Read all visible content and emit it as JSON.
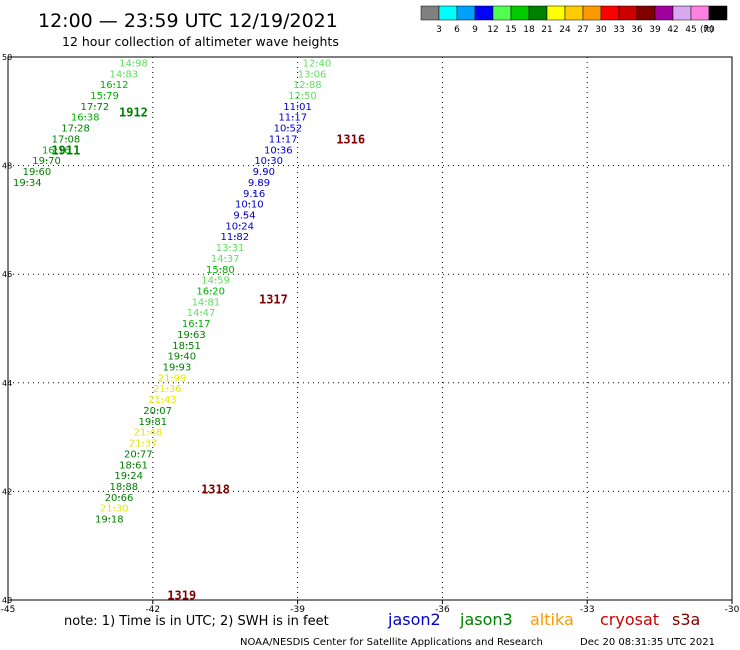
{
  "header": {
    "title": "12:00 — 23:59 UTC 12/19/2021",
    "subtitle": "12 hour collection of altimeter wave heights"
  },
  "colorbar": {
    "labels": [
      "3",
      "6",
      "9",
      "12",
      "15",
      "18",
      "21",
      "24",
      "27",
      "30",
      "33",
      "36",
      "39",
      "42",
      "45",
      "70"
    ],
    "unit": "(ft)",
    "colors": [
      "#808080",
      "#00ffff",
      "#00a0ff",
      "#0000ff",
      "#50ff50",
      "#00cc00",
      "#008000",
      "#ffff00",
      "#ffcc00",
      "#ff9900",
      "#ff0000",
      "#cc0000",
      "#800000",
      "#a000a0",
      "#d8a8f0",
      "#ff80e0",
      "#000000"
    ]
  },
  "footer": {
    "note": "note:  1) Time is in UTC;  2) SWH is in feet",
    "credit": "NOAA/NESDIS Center for Satellite Applications and Research",
    "timestamp": "Dec 20 08:31:35 UTC 2021"
  },
  "missions": [
    {
      "name": "jason2",
      "color": "#0000cc"
    },
    {
      "name": "jason3",
      "color": "#008000"
    },
    {
      "name": "altika",
      "color": "#ff9900"
    },
    {
      "name": "cryosat",
      "color": "#cc0000"
    },
    {
      "name": "s3a",
      "color": "#800000"
    }
  ],
  "chart_data": {
    "type": "scatter",
    "xlim": [
      -45,
      -30
    ],
    "ylim": [
      40,
      50
    ],
    "x_ticks": [
      "-45",
      "-42",
      "-39",
      "-36",
      "-33",
      "-30"
    ],
    "y_ticks": [
      "40",
      "42",
      "44",
      "46",
      "48",
      "50"
    ],
    "grid": true,
    "time_labels": [
      {
        "text": "1912",
        "x": -42.7,
        "y": 49.0,
        "color": "#008000"
      },
      {
        "text": "1911",
        "x": -44.1,
        "y": 48.3,
        "color": "#008000"
      },
      {
        "text": "1316",
        "x": -38.2,
        "y": 48.5,
        "color": "#800000"
      },
      {
        "text": "1317",
        "x": -39.8,
        "y": 45.55,
        "color": "#800000"
      },
      {
        "text": "1318",
        "x": -41.0,
        "y": 42.05,
        "color": "#800000"
      },
      {
        "text": "1319",
        "x": -41.7,
        "y": 40.1,
        "color": "#800000"
      }
    ],
    "tracks": [
      {
        "points": [
          {
            "label": "14.98",
            "x": -42.4,
            "y": 49.9,
            "color": "#60e060"
          },
          {
            "label": "14.83",
            "x": -42.6,
            "y": 49.7,
            "color": "#60e060"
          },
          {
            "label": "16.12",
            "x": -42.8,
            "y": 49.5,
            "color": "#00b000"
          },
          {
            "label": "15.79",
            "x": -43.0,
            "y": 49.3,
            "color": "#00b000"
          },
          {
            "label": "17.72",
            "x": -43.2,
            "y": 49.1,
            "color": "#008000"
          },
          {
            "label": "16.38",
            "x": -43.4,
            "y": 48.9,
            "color": "#00b000"
          },
          {
            "label": "17.28",
            "x": -43.6,
            "y": 48.7,
            "color": "#008000"
          },
          {
            "label": "17.08",
            "x": -43.8,
            "y": 48.5,
            "color": "#008000"
          },
          {
            "label": "16.16",
            "x": -44.0,
            "y": 48.3,
            "color": "#00b000"
          },
          {
            "label": "19.70",
            "x": -44.2,
            "y": 48.1,
            "color": "#008000"
          },
          {
            "label": "19.60",
            "x": -44.4,
            "y": 47.9,
            "color": "#008000"
          },
          {
            "label": "19.34",
            "x": -44.6,
            "y": 47.7,
            "color": "#008000"
          }
        ]
      },
      {
        "points": [
          {
            "label": "12.40",
            "x": -38.6,
            "y": 49.9,
            "color": "#60e060"
          },
          {
            "label": "13.06",
            "x": -38.7,
            "y": 49.7,
            "color": "#60e060"
          },
          {
            "label": "12.88",
            "x": -38.8,
            "y": 49.5,
            "color": "#60e060"
          },
          {
            "label": "12.50",
            "x": -38.9,
            "y": 49.3,
            "color": "#60e060"
          },
          {
            "label": "11.01",
            "x": -39.0,
            "y": 49.1,
            "color": "#0000cc"
          },
          {
            "label": "11.17",
            "x": -39.1,
            "y": 48.9,
            "color": "#0000cc"
          },
          {
            "label": "10.52",
            "x": -39.2,
            "y": 48.7,
            "color": "#0000cc"
          },
          {
            "label": "11.17",
            "x": -39.3,
            "y": 48.5,
            "color": "#0000cc"
          },
          {
            "label": "10.36",
            "x": -39.4,
            "y": 48.3,
            "color": "#0000cc"
          },
          {
            "label": "10.30",
            "x": -39.6,
            "y": 48.1,
            "color": "#0000cc"
          },
          {
            "label": "9.90",
            "x": -39.7,
            "y": 47.9,
            "color": "#0000cc"
          },
          {
            "label": "9.89",
            "x": -39.8,
            "y": 47.7,
            "color": "#0000cc"
          },
          {
            "label": "9.16",
            "x": -39.9,
            "y": 47.5,
            "color": "#0000cc"
          },
          {
            "label": "10.10",
            "x": -40.0,
            "y": 47.3,
            "color": "#0000cc"
          },
          {
            "label": "9.54",
            "x": -40.1,
            "y": 47.1,
            "color": "#0000cc"
          },
          {
            "label": "10.24",
            "x": -40.2,
            "y": 46.9,
            "color": "#0000cc"
          },
          {
            "label": "11.82",
            "x": -40.3,
            "y": 46.7,
            "color": "#0000cc"
          },
          {
            "label": "13.31",
            "x": -40.4,
            "y": 46.5,
            "color": "#60e060"
          },
          {
            "label": "14.37",
            "x": -40.5,
            "y": 46.3,
            "color": "#60e060"
          },
          {
            "label": "15.80",
            "x": -40.6,
            "y": 46.1,
            "color": "#00b000"
          },
          {
            "label": "14.59",
            "x": -40.7,
            "y": 45.9,
            "color": "#60e060"
          },
          {
            "label": "16.20",
            "x": -40.8,
            "y": 45.7,
            "color": "#00b000"
          },
          {
            "label": "14.81",
            "x": -40.9,
            "y": 45.5,
            "color": "#60e060"
          },
          {
            "label": "14.47",
            "x": -41.0,
            "y": 45.3,
            "color": "#60e060"
          },
          {
            "label": "16.17",
            "x": -41.1,
            "y": 45.1,
            "color": "#00b000"
          },
          {
            "label": "19.63",
            "x": -41.2,
            "y": 44.9,
            "color": "#008000"
          },
          {
            "label": "18.51",
            "x": -41.3,
            "y": 44.7,
            "color": "#008000"
          },
          {
            "label": "19.40",
            "x": -41.4,
            "y": 44.5,
            "color": "#008000"
          },
          {
            "label": "19.93",
            "x": -41.5,
            "y": 44.3,
            "color": "#008000"
          },
          {
            "label": "21.99",
            "x": -41.6,
            "y": 44.1,
            "color": "#e8e800"
          },
          {
            "label": "21.36",
            "x": -41.7,
            "y": 43.9,
            "color": "#e8e800"
          },
          {
            "label": "21.43",
            "x": -41.8,
            "y": 43.7,
            "color": "#e8e800"
          },
          {
            "label": "20.07",
            "x": -41.9,
            "y": 43.5,
            "color": "#008000"
          },
          {
            "label": "19.81",
            "x": -42.0,
            "y": 43.3,
            "color": "#008000"
          },
          {
            "label": "21.48",
            "x": -42.1,
            "y": 43.1,
            "color": "#e8e800"
          },
          {
            "label": "21.37",
            "x": -42.2,
            "y": 42.9,
            "color": "#e8e800"
          },
          {
            "label": "20.77",
            "x": -42.3,
            "y": 42.7,
            "color": "#008000"
          },
          {
            "label": "18.61",
            "x": -42.4,
            "y": 42.5,
            "color": "#008000"
          },
          {
            "label": "19.24",
            "x": -42.5,
            "y": 42.3,
            "color": "#008000"
          },
          {
            "label": "18.88",
            "x": -42.6,
            "y": 42.1,
            "color": "#008000"
          },
          {
            "label": "20.66",
            "x": -42.7,
            "y": 41.9,
            "color": "#008000"
          },
          {
            "label": "21.30",
            "x": -42.8,
            "y": 41.7,
            "color": "#e8e800"
          },
          {
            "label": "19.18",
            "x": -42.9,
            "y": 41.5,
            "color": "#008000"
          }
        ]
      }
    ]
  }
}
